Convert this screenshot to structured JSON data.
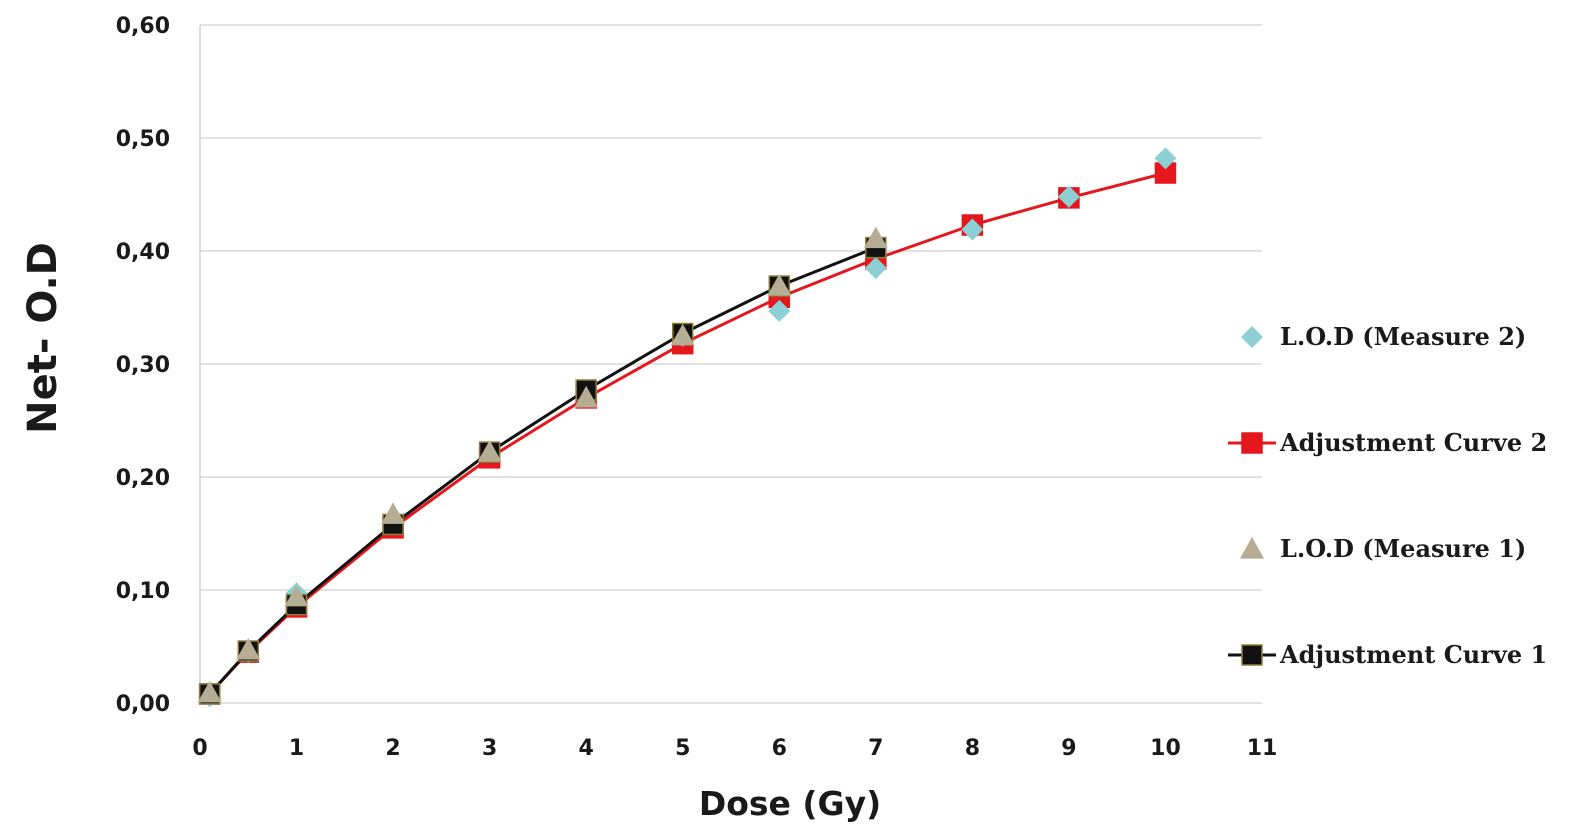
{
  "chart_data": {
    "type": "line",
    "title": "",
    "xlabel": "Dose (Gy)",
    "ylabel": "Net- O.D",
    "xlim": [
      0,
      11
    ],
    "ylim": [
      0,
      0.6
    ],
    "x_ticks": [
      "0",
      "1",
      "2",
      "3",
      "4",
      "5",
      "6",
      "7",
      "8",
      "9",
      "10",
      "11"
    ],
    "y_ticks": [
      "0,00",
      "0,10",
      "0,20",
      "0,30",
      "0,40",
      "0,50",
      "0,60"
    ],
    "grid": "horizontal",
    "legend_position": "right",
    "series": [
      {
        "name": "L.O.D (Measure 2)",
        "marker": "diamond",
        "line": false,
        "color": "#8ccfd4",
        "x": [
          0.1,
          0.5,
          1,
          2,
          3,
          4,
          5,
          6,
          7,
          8,
          9,
          10
        ],
        "y": [
          0.006,
          0.045,
          0.097,
          0.16,
          0.222,
          0.276,
          0.325,
          0.347,
          0.385,
          0.419,
          0.448,
          0.482
        ]
      },
      {
        "name": "Adjustment Curve 2",
        "marker": "square",
        "line": true,
        "color": "#e3171c",
        "x": [
          0.1,
          0.5,
          1,
          2,
          3,
          4,
          5,
          6,
          7,
          8,
          9,
          10
        ],
        "y": [
          0.008,
          0.045,
          0.085,
          0.155,
          0.217,
          0.27,
          0.318,
          0.359,
          0.393,
          0.423,
          0.447,
          0.469
        ]
      },
      {
        "name": "L.O.D (Measure 1)",
        "marker": "triangle",
        "line": false,
        "color": "#b5ae94",
        "x": [
          0.1,
          0.5,
          1,
          2,
          3,
          4,
          5,
          6,
          7
        ],
        "y": [
          0.009,
          0.047,
          0.094,
          0.167,
          0.222,
          0.27,
          0.325,
          0.369,
          0.411
        ]
      },
      {
        "name": "Adjustment Curve 1",
        "marker": "square",
        "line": true,
        "color": "#111111",
        "x": [
          0.1,
          0.5,
          1,
          2,
          3,
          4,
          5,
          6,
          7
        ],
        "y": [
          0.008,
          0.046,
          0.087,
          0.158,
          0.222,
          0.277,
          0.327,
          0.369,
          0.403
        ]
      }
    ]
  }
}
